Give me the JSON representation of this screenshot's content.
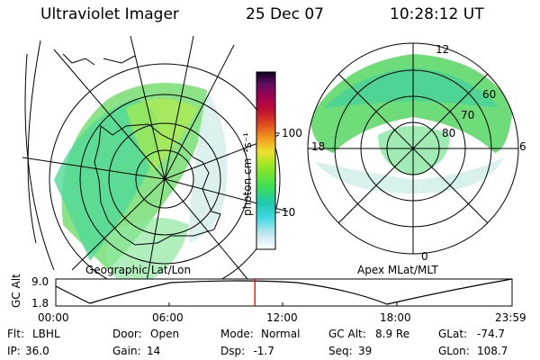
{
  "header": {
    "instrument": "Ultraviolet Imager",
    "date": "25 Dec 07",
    "time": "10:28:12 UT"
  },
  "colorbar": {
    "unit_label": "photon cm⁻²s⁻¹",
    "ticks": [
      "100",
      "10"
    ]
  },
  "left_map": {
    "label": "Geographic Lat/Lon"
  },
  "right_map": {
    "label": "Apex  MLat/MLT",
    "mlt_labels": [
      "12",
      "18",
      "6",
      "0"
    ],
    "lat_labels": [
      "60",
      "70",
      "80"
    ]
  },
  "altitude_strip": {
    "ylabel": "GC Alt",
    "yticks": [
      "9.0",
      "1.8"
    ],
    "xticks": [
      "00:00",
      "06:00",
      "12:00",
      "18:00",
      "23:59"
    ],
    "current_time_hours": 10.47,
    "marker_color": "#e00000"
  },
  "status": {
    "row1": [
      {
        "label": "Flt:",
        "value": "LBHL"
      },
      {
        "label": "Door:",
        "value": "Open"
      },
      {
        "label": "Mode:",
        "value": "Normal"
      },
      {
        "label": "GC Alt:",
        "value": "8.9 Re"
      },
      {
        "label": "GLat:",
        "value": "-74.7"
      }
    ],
    "row2": [
      {
        "label": "IP:",
        "value": "36.0"
      },
      {
        "label": "Gain:",
        "value": "14"
      },
      {
        "label": "Dsp:",
        "value": "   -1.7"
      },
      {
        "label": "Seq:",
        "value": "39"
      },
      {
        "label": "GLon:",
        "value": "108.7"
      }
    ]
  }
}
